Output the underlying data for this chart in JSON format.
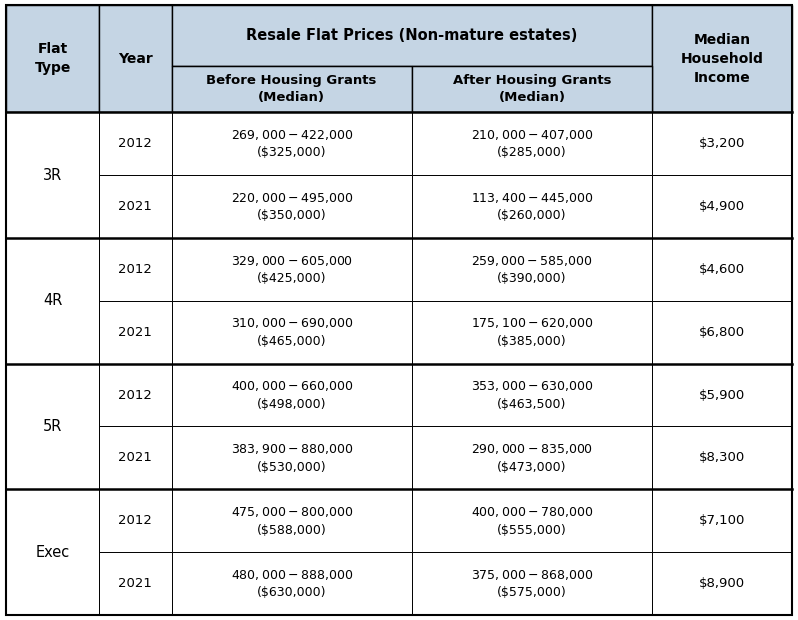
{
  "header_bg": "#c5d5e4",
  "cell_bg_white": "#ffffff",
  "border_color": "#000000",
  "col0_header": "Flat\nType",
  "col1_header": "Year",
  "col2_header": "Before Housing Grants\n(Median)",
  "col3_header": "After Housing Grants\n(Median)",
  "col4_header": "Median\nHousehold\nIncome",
  "merged_header": "Resale Flat Prices (Non-mature estates)",
  "rows": [
    {
      "flat_type": "3R",
      "year": "2012",
      "before": "$269,000 - $422,000\n($325,000)",
      "after": "$210,000 -$407,000\n($285,000)",
      "income": "$3,200"
    },
    {
      "flat_type": "3R",
      "year": "2021",
      "before": "$220,000 - $495,000\n($350,000)",
      "after": "$113,400 - $445,000\n($260,000)",
      "income": "$4,900"
    },
    {
      "flat_type": "4R",
      "year": "2012",
      "before": "$329,000 - $605,000\n($425,000)",
      "after": "$259,000 - $585,000\n($390,000)",
      "income": "$4,600"
    },
    {
      "flat_type": "4R",
      "year": "2021",
      "before": "$310,000 - $690,000\n($465,000)",
      "after": "$175,100 - $620,000\n($385,000)",
      "income": "$6,800"
    },
    {
      "flat_type": "5R",
      "year": "2012",
      "before": "$400,000 - $660,000\n($498,000)",
      "after": "$353,000 - $630,000\n($463,500)",
      "income": "$5,900"
    },
    {
      "flat_type": "5R",
      "year": "2021",
      "before": "$383,900 - $880,000\n($530,000)",
      "after": "$290,000 - $835,000\n($473,000)",
      "income": "$8,300"
    },
    {
      "flat_type": "Exec",
      "year": "2012",
      "before": "$475,000 - $800,000\n($588,000)",
      "after": "$400,000 - $780,000\n($555,000)",
      "income": "$7,100"
    },
    {
      "flat_type": "Exec",
      "year": "2021",
      "before": "$480,000 - $888,000\n($630,000)",
      "after": "$375,000 - $868,000\n($575,000)",
      "income": "$8,900"
    }
  ],
  "groups": [
    [
      0,
      2,
      "3R"
    ],
    [
      2,
      4,
      "4R"
    ],
    [
      4,
      6,
      "5R"
    ],
    [
      6,
      8,
      "Exec"
    ]
  ],
  "figsize": [
    7.98,
    6.2
  ],
  "dpi": 100
}
